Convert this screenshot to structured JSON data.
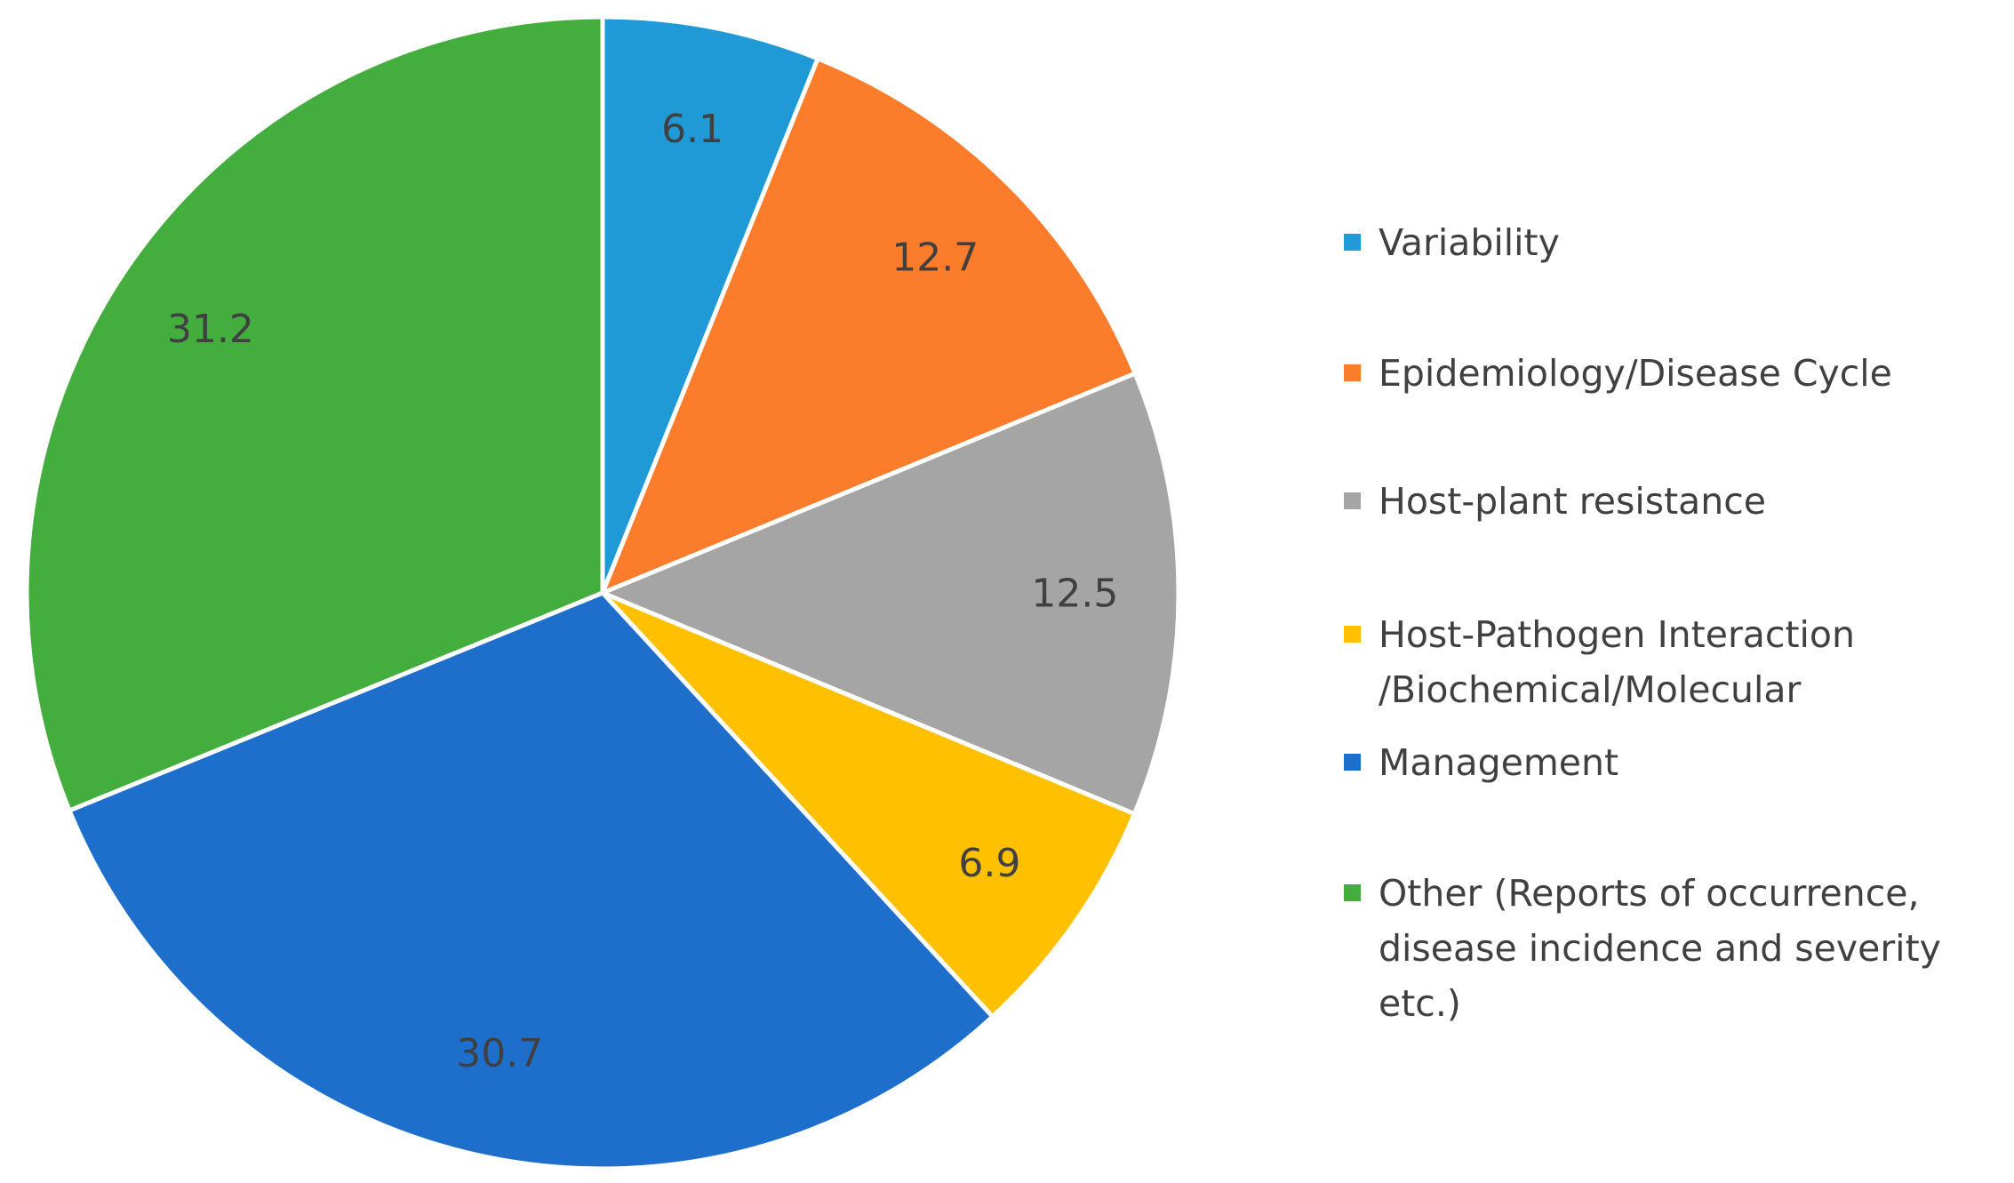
{
  "chart_data": {
    "type": "pie",
    "title": "",
    "start_angle_deg": 0,
    "direction": "clockwise",
    "slices": [
      {
        "name": "Variability",
        "value": 6.1,
        "label": "6.1",
        "color": "#1f9ad6"
      },
      {
        "name": "Epidemiology/Disease Cycle",
        "value": 12.7,
        "label": "12.7",
        "color": "#fb7d2b"
      },
      {
        "name": "Host-plant resistance",
        "value": 12.5,
        "label": "12.5",
        "color": "#a5a5a5"
      },
      {
        "name": "Host-Pathogen Interaction\n/Biochemical/Molecular",
        "value": 6.9,
        "label": "6.9",
        "color": "#ffc000"
      },
      {
        "name": "Management",
        "value": 30.7,
        "label": "30.7",
        "color": "#1e6fcc"
      },
      {
        "name": "Other (Reports of occurrence,\ndisease incidence and severity etc.)",
        "value": 31.2,
        "label": "31.2",
        "color": "#43ae3e"
      }
    ],
    "legend": {
      "position": "right",
      "entries": [
        "Variability",
        "Epidemiology/Disease Cycle",
        "Host-plant resistance",
        "Host-Pathogen Interaction\n/Biochemical/Molecular",
        "Management",
        "Other (Reports of occurrence,\ndisease incidence and severity etc.)"
      ]
    }
  }
}
